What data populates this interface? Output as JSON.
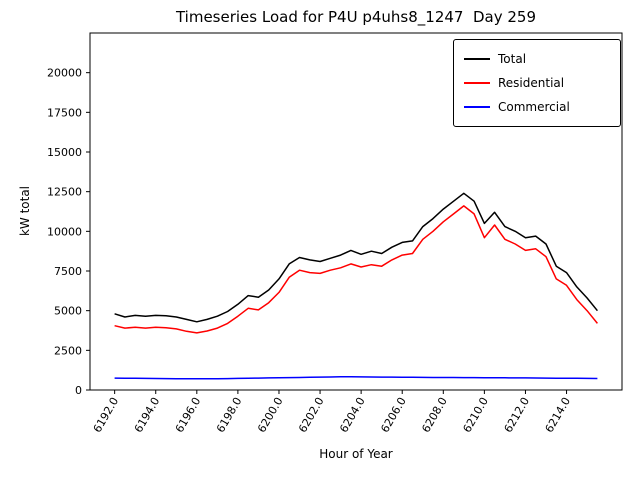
{
  "chart_data": {
    "type": "line",
    "title": "Timeseries Load for P4U p4uhs8_1247  Day 259",
    "xlabel": "Hour of Year",
    "ylabel": "kW total",
    "xlim": [
      6190.8,
      6216.7
    ],
    "ylim": [
      0,
      22500
    ],
    "grid": false,
    "legend_position": "upper right",
    "x_ticks": [
      6192,
      6194,
      6196,
      6198,
      6200,
      6202,
      6204,
      6206,
      6208,
      6210,
      6212,
      6214
    ],
    "y_ticks": [
      0,
      2500,
      5000,
      7500,
      10000,
      12500,
      15000,
      17500,
      20000
    ],
    "x": [
      6192.0,
      6192.5,
      6193.0,
      6193.5,
      6194.0,
      6194.5,
      6195.0,
      6195.5,
      6196.0,
      6196.5,
      6197.0,
      6197.5,
      6198.0,
      6198.5,
      6199.0,
      6199.5,
      6200.0,
      6200.5,
      6201.0,
      6201.5,
      6202.0,
      6202.5,
      6203.0,
      6203.5,
      6204.0,
      6204.5,
      6205.0,
      6205.5,
      6206.0,
      6206.5,
      6207.0,
      6207.5,
      6208.0,
      6208.5,
      6209.0,
      6209.5,
      6210.0,
      6210.5,
      6211.0,
      6211.5,
      6212.0,
      6212.5,
      6213.0,
      6213.5,
      6214.0,
      6214.5,
      6215.0,
      6215.5
    ],
    "series": [
      {
        "name": "Total",
        "color": "#000000",
        "values": [
          4800,
          4600,
          4700,
          4650,
          4700,
          4680,
          4600,
          4450,
          4300,
          4450,
          4650,
          4950,
          5400,
          5950,
          5850,
          6300,
          7000,
          7950,
          8350,
          8200,
          8100,
          8300,
          8500,
          8800,
          8550,
          8750,
          8600,
          9000,
          9300,
          9400,
          10300,
          10800,
          11400,
          11900,
          12400,
          11900,
          10500,
          11200,
          10300,
          10000,
          9600,
          9700,
          9200,
          7800,
          7400,
          6500,
          5800,
          5000
        ]
      },
      {
        "name": "Residential",
        "color": "#ff0000",
        "values": [
          4050,
          3900,
          3950,
          3900,
          3950,
          3920,
          3850,
          3700,
          3600,
          3720,
          3900,
          4200,
          4650,
          5150,
          5050,
          5500,
          6150,
          7100,
          7550,
          7400,
          7350,
          7550,
          7700,
          7950,
          7750,
          7900,
          7800,
          8200,
          8500,
          8600,
          9500,
          10000,
          10600,
          11100,
          11600,
          11100,
          9600,
          10400,
          9500,
          9200,
          8800,
          8900,
          8400,
          7000,
          6600,
          5700,
          5000,
          4200
        ]
      },
      {
        "name": "Commercial",
        "color": "#0000ff",
        "values": [
          750,
          740,
          735,
          730,
          725,
          720,
          715,
          710,
          705,
          710,
          715,
          720,
          730,
          740,
          750,
          760,
          770,
          780,
          790,
          800,
          810,
          820,
          830,
          830,
          825,
          820,
          815,
          810,
          805,
          800,
          795,
          790,
          785,
          785,
          780,
          780,
          775,
          775,
          770,
          765,
          760,
          755,
          750,
          745,
          740,
          735,
          730,
          725
        ]
      }
    ]
  }
}
